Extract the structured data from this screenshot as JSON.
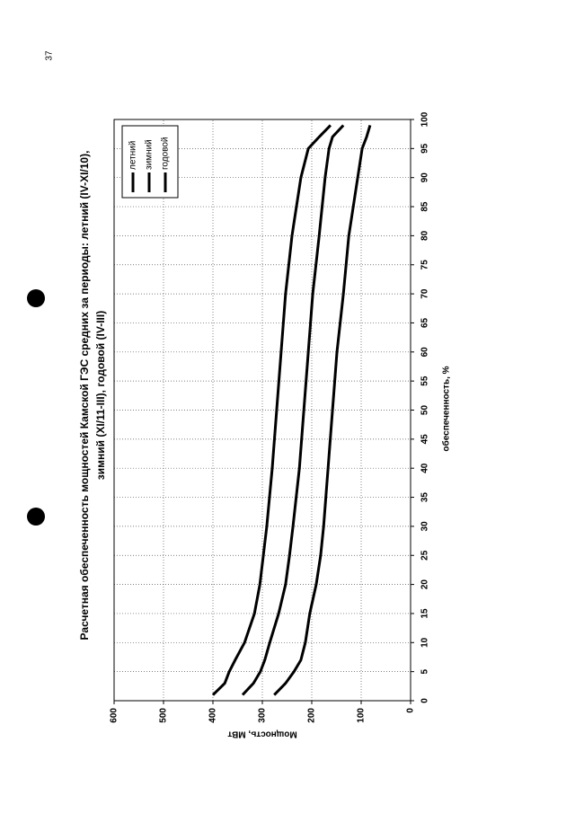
{
  "page_number": "37",
  "chart_data": {
    "type": "line",
    "title": "Расчетная обеспеченность мощностей Камской ГЭС средних за периоды: летний (IV-XI/10),",
    "subtitle": "зимний (XI/11-III), годовой (IV-III)",
    "x_label": "обеспеченность, %",
    "y_label": "Мощность, МВт",
    "x": [
      1,
      3,
      5,
      7,
      10,
      15,
      20,
      25,
      30,
      40,
      50,
      60,
      70,
      80,
      90,
      95,
      97,
      99
    ],
    "series": [
      {
        "name": "летний",
        "color": "#000000",
        "values": [
          400,
          376,
          367,
          355,
          336,
          316,
          305,
          298,
          291,
          280,
          271,
          262,
          253,
          240,
          222,
          207,
          185,
          162
        ]
      },
      {
        "name": "зимний",
        "color": "#000000",
        "values": [
          340,
          318,
          304,
          295,
          285,
          267,
          253,
          245,
          238,
          225,
          216,
          207,
          198,
          185,
          173,
          165,
          158,
          136
        ]
      },
      {
        "name": "годовой",
        "color": "#000000",
        "values": [
          276,
          253,
          236,
          222,
          213,
          204,
          191,
          182,
          176,
          167,
          158,
          149,
          136,
          125,
          107,
          98,
          89,
          82
        ]
      }
    ],
    "xlim": [
      0,
      100
    ],
    "xticks": [
      0,
      5,
      10,
      15,
      20,
      25,
      30,
      35,
      40,
      45,
      50,
      55,
      60,
      65,
      70,
      75,
      80,
      85,
      90,
      95,
      100
    ],
    "ylim": [
      0,
      600
    ],
    "yticks": [
      0,
      100,
      200,
      300,
      400,
      500,
      600
    ],
    "grid": true,
    "legend": "upper right"
  }
}
